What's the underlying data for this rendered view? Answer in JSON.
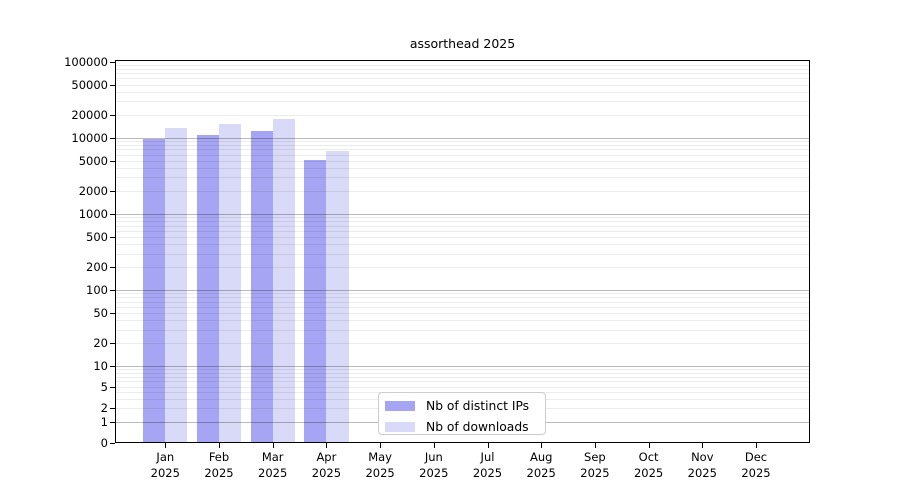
{
  "title": "assorthead 2025",
  "chart_data": {
    "type": "bar",
    "title": "assorthead 2025",
    "categories": [
      "Jan",
      "Feb",
      "Mar",
      "Apr",
      "May",
      "Jun",
      "Jul",
      "Aug",
      "Sep",
      "Oct",
      "Nov",
      "Dec"
    ],
    "category_year": "2025",
    "series": [
      {
        "name": "Nb of distinct IPs",
        "color": "#a5a5f3",
        "values": [
          9500,
          10900,
          12200,
          5100,
          0,
          0,
          0,
          0,
          0,
          0,
          0,
          0
        ]
      },
      {
        "name": "Nb of downloads",
        "color": "#d9d9f8",
        "values": [
          13300,
          15100,
          17500,
          6600,
          0,
          0,
          0,
          0,
          0,
          0,
          0,
          0
        ]
      }
    ],
    "y_ticks": [
      0,
      1,
      2,
      5,
      10,
      20,
      50,
      100,
      200,
      500,
      1000,
      2000,
      5000,
      10000,
      20000,
      50000,
      100000
    ],
    "ylim": [
      0,
      100000
    ],
    "xlabel": "",
    "ylabel": "",
    "scale": "symlog",
    "grid": "horizontal only; darker lines at powers of 10, light minor lines at 2-9 per decade",
    "legend_position": "inside bottom-center"
  },
  "colors": {
    "bar_distinct_ips": "#a5a5f3",
    "bar_downloads": "#d9d9f8",
    "grid_major": "#bababa",
    "grid_minor": "#ececec",
    "axis": "#000000",
    "legend_border": "#cccccc",
    "background": "#ffffff"
  }
}
